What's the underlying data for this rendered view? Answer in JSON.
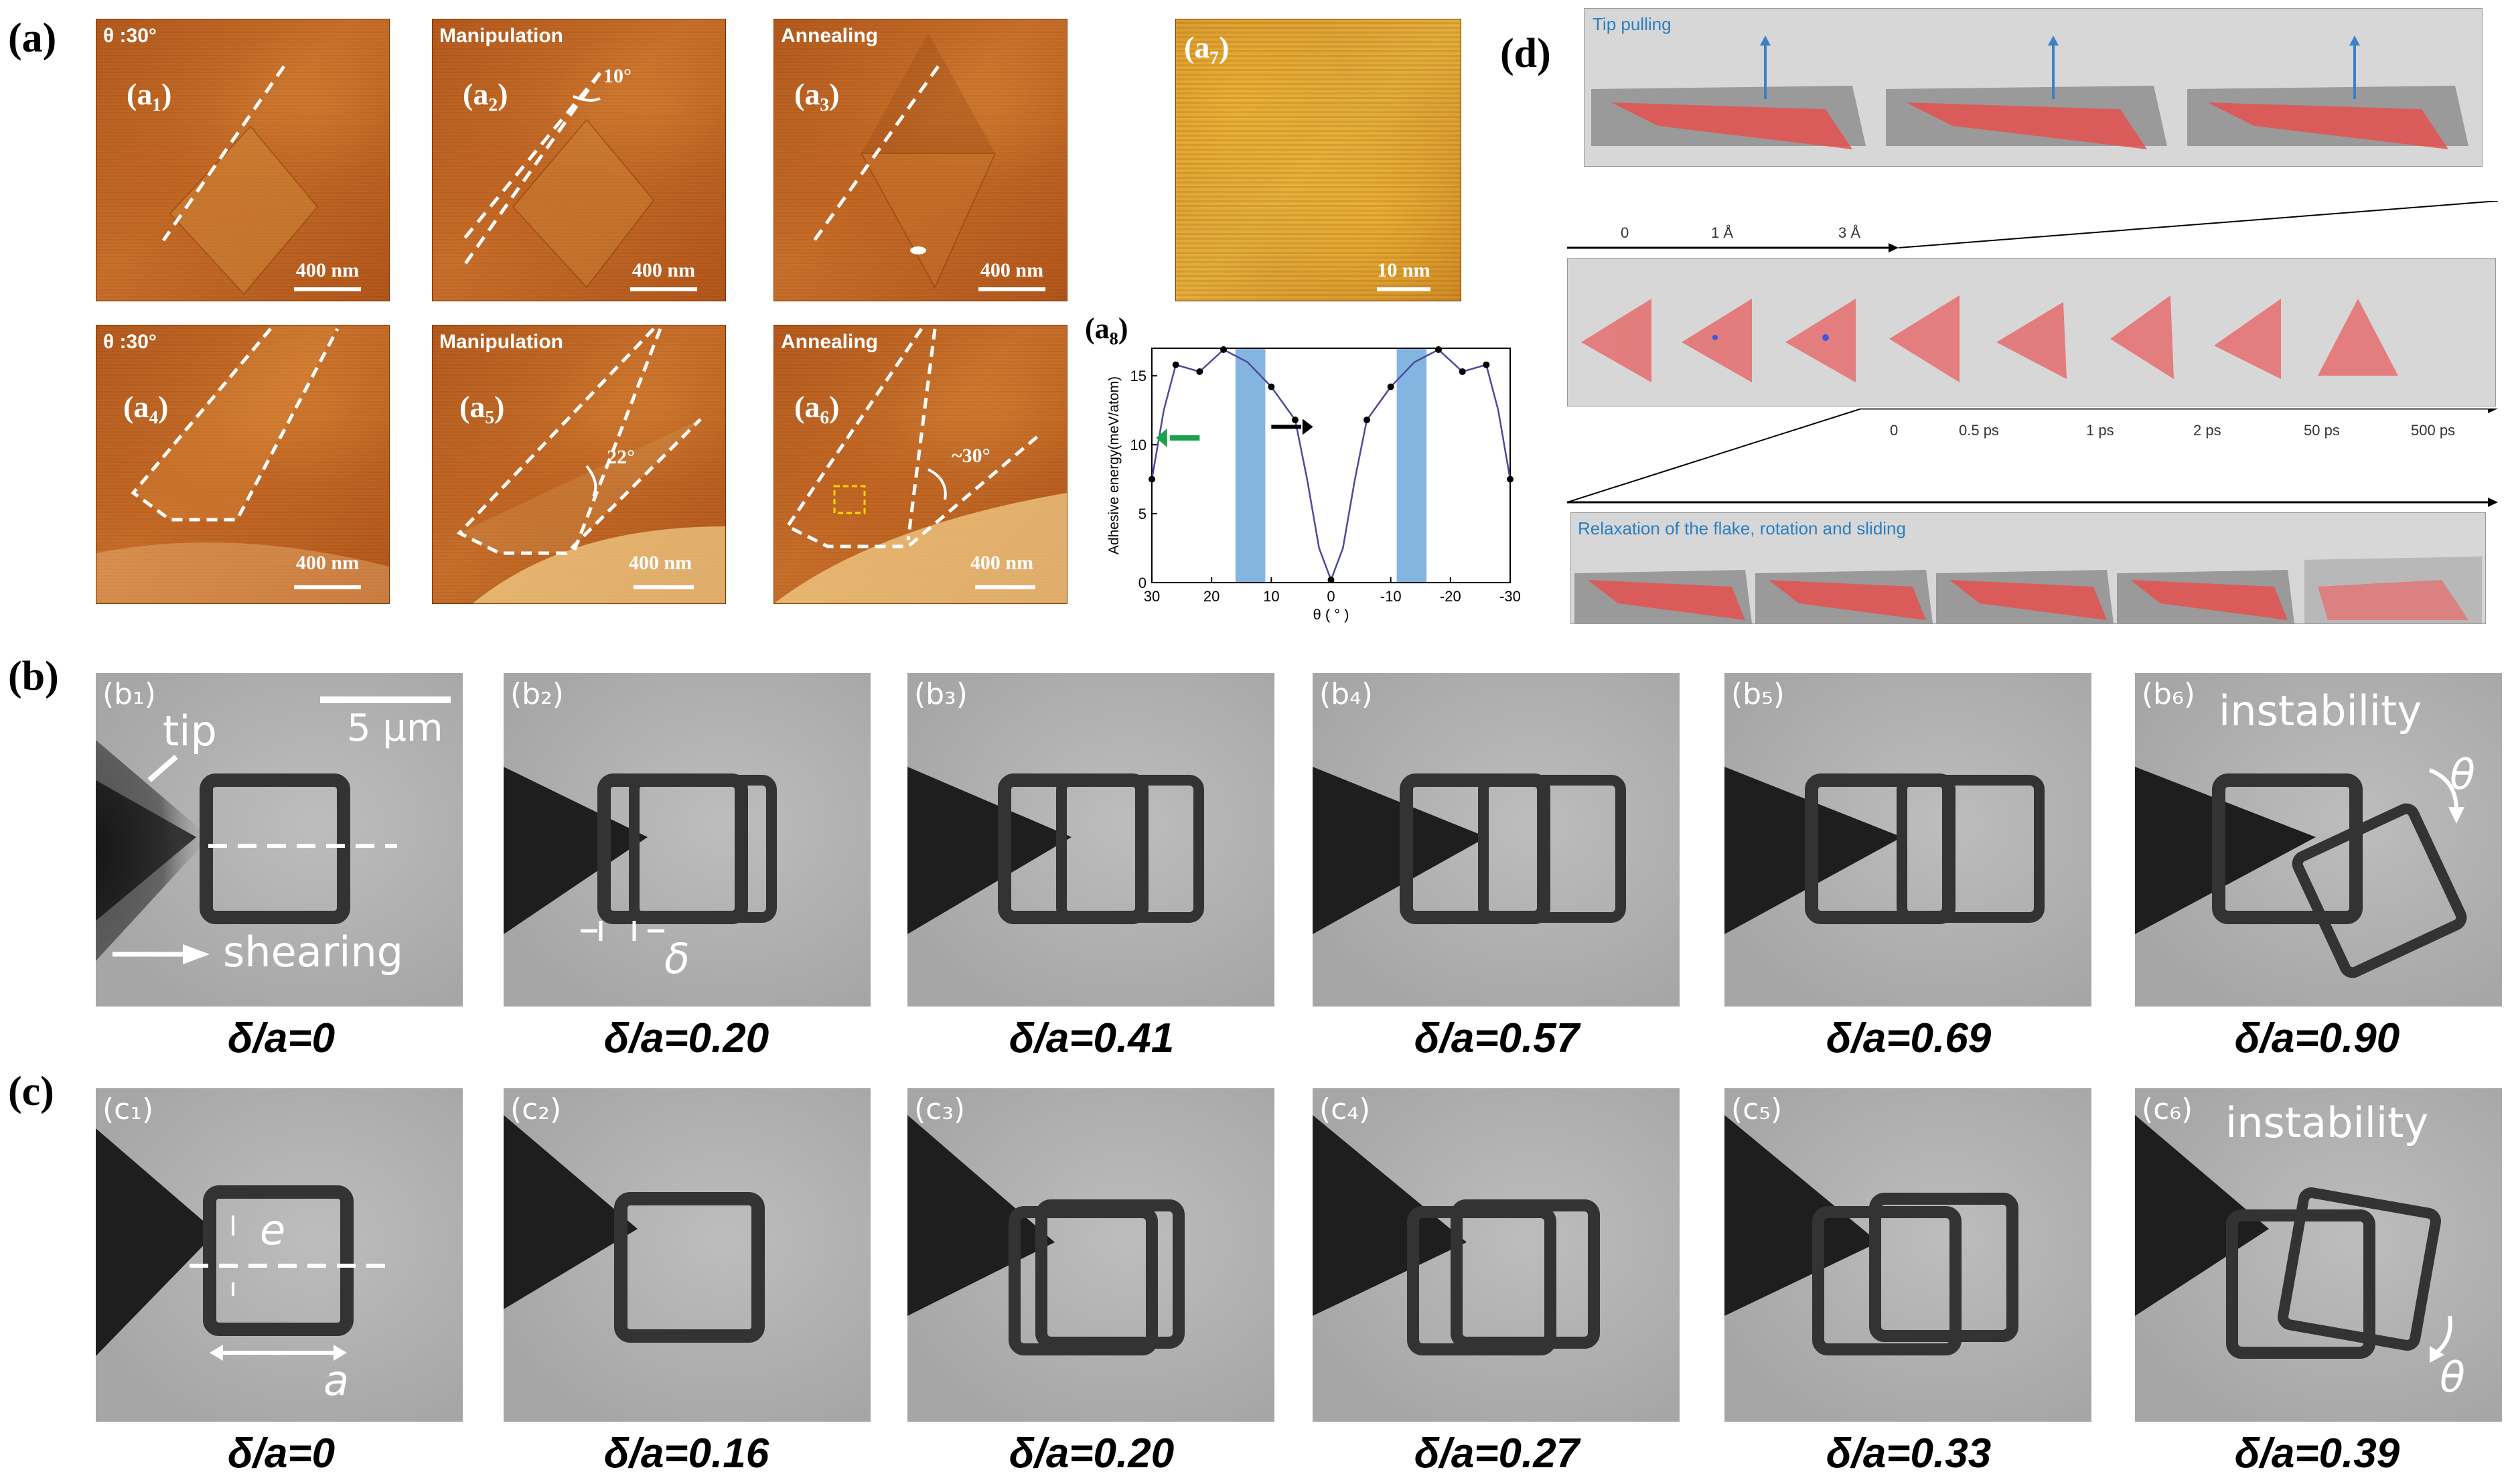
{
  "panel_labels": {
    "a": "(a)",
    "b": "(b)",
    "c": "(c)",
    "d": "(d)"
  },
  "afm": [
    {
      "tag": "θ :30°",
      "sub": "(a₁)",
      "scale": "400 nm"
    },
    {
      "tag": "Manipulation",
      "sub": "(a₂)",
      "scale": "400 nm",
      "angle": "10°"
    },
    {
      "tag": "Annealing",
      "sub": "(a₃)",
      "scale": "400 nm"
    },
    {
      "tag": "",
      "sub": "(a₇)",
      "scale": "10 nm"
    },
    {
      "tag": "θ :30°",
      "sub": "(a₄)",
      "scale": "400 nm"
    },
    {
      "tag": "Manipulation",
      "sub": "(a₅)",
      "scale": "400 nm",
      "angle": "22°"
    },
    {
      "tag": "Annealing",
      "sub": "(a₆)",
      "scale": "400 nm",
      "angle": "~30°"
    }
  ],
  "a8_label": "(a₈)",
  "chart_data": {
    "type": "line",
    "xlabel": "θ ( ° )",
    "ylabel": "Adhesive energy(meV/atom)",
    "xlim": [
      30,
      -30
    ],
    "ylim": [
      0,
      17
    ],
    "xticks": [
      "30",
      "20",
      "10",
      "0",
      "-10",
      "-20",
      "-30"
    ],
    "yticks": [
      "0",
      "5",
      "10",
      "15"
    ],
    "x": [
      30,
      28,
      26,
      22,
      18,
      14,
      10,
      6,
      4,
      2,
      0,
      -2,
      -4,
      -6,
      -10,
      -14,
      -18,
      -22,
      -26,
      -28,
      -30
    ],
    "y": [
      7.5,
      12.5,
      15.8,
      15.3,
      16.9,
      16.0,
      14.2,
      11.8,
      7.5,
      2.5,
      0.2,
      2.5,
      7.5,
      11.8,
      14.2,
      16.0,
      16.9,
      15.3,
      15.8,
      12.5,
      7.5
    ],
    "markers_x": [
      30,
      26,
      22,
      18,
      10,
      6,
      0,
      -6,
      -10,
      -18,
      -22,
      -26,
      -30
    ],
    "shaded_bands": [
      [
        16,
        11
      ],
      [
        -11,
        -16
      ]
    ],
    "band_color": "#6fa8dc",
    "line_color": "#4a4aa0"
  },
  "tem_b": {
    "labels": [
      "(b₁)",
      "(b₂)",
      "(b₃)",
      "(b₄)",
      "(b₅)",
      "(b₆)"
    ],
    "captions": [
      "δ/a=0",
      "δ/a=0.20",
      "δ/a=0.41",
      "δ/a=0.57",
      "δ/a=0.69",
      "δ/a=0.90"
    ],
    "tip": "tip",
    "scale": "5 μm",
    "shearing": "shearing",
    "delta": "δ",
    "instability": "instability",
    "theta": "θ"
  },
  "tem_c": {
    "labels": [
      "(c₁)",
      "(c₂)",
      "(c₃)",
      "(c₄)",
      "(c₅)",
      "(c₆)"
    ],
    "captions": [
      "δ/a=0",
      "δ/a=0.16",
      "δ/a=0.20",
      "δ/a=0.27",
      "δ/a=0.33",
      "δ/a=0.39"
    ],
    "e": "e",
    "a": "a",
    "instability": "instability",
    "theta": "θ"
  },
  "md": {
    "tip_pulling": "Tip pulling",
    "dist_ticks": [
      "0",
      "1 Å",
      "3 Å"
    ],
    "time_ticks": [
      "0",
      "0.5 ps",
      "1 ps",
      "2 ps",
      "50 ps",
      "500 ps"
    ],
    "relaxation": "Relaxation of the flake, rotation and sliding"
  }
}
